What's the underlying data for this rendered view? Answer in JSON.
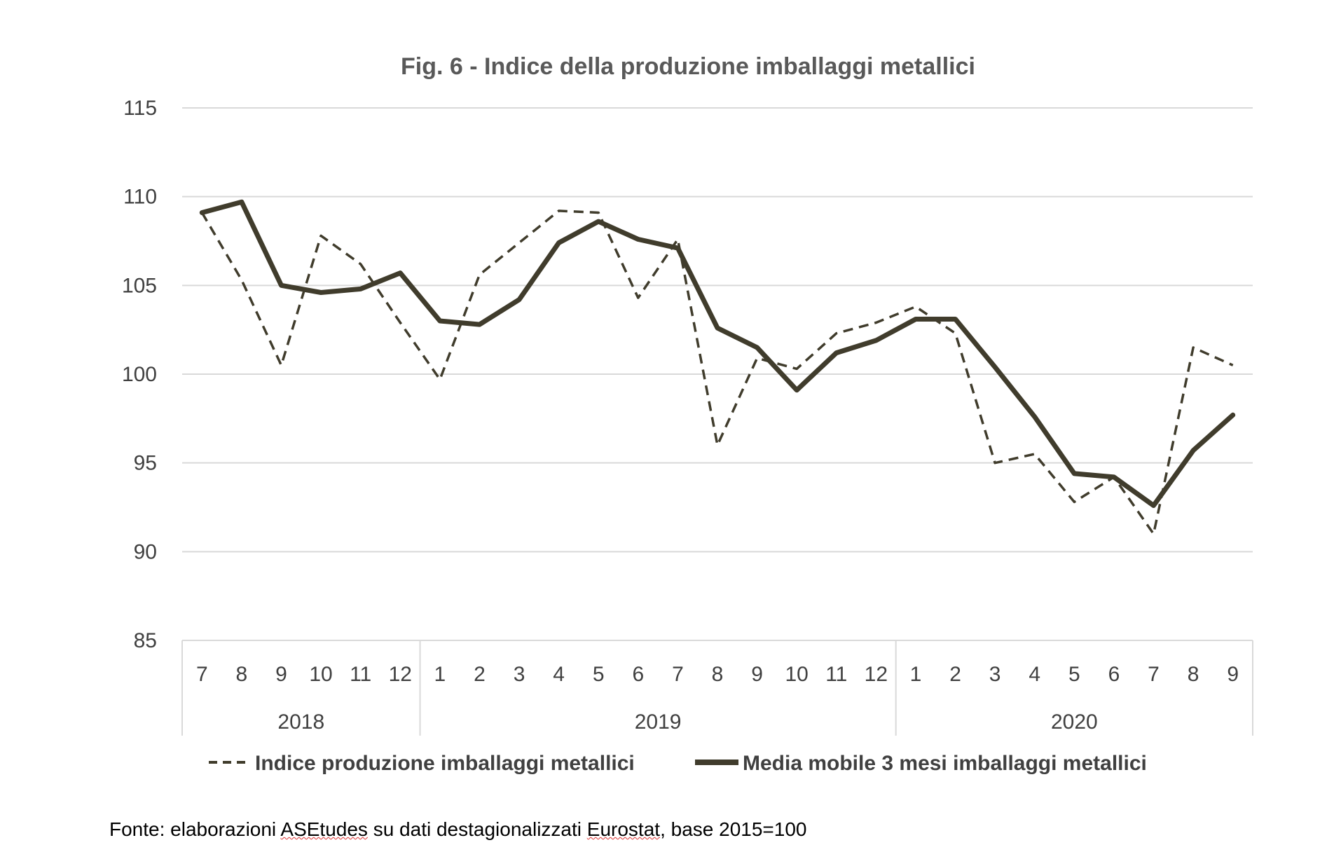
{
  "chart_data": {
    "type": "line",
    "title": "Fig. 6 - Indice della produzione imballaggi metallici",
    "ylim": [
      85,
      115
    ],
    "yticks": [
      85,
      90,
      95,
      100,
      105,
      110,
      115
    ],
    "grid": true,
    "legend_position": "bottom",
    "categories": [
      "7",
      "8",
      "9",
      "10",
      "11",
      "12",
      "1",
      "2",
      "3",
      "4",
      "5",
      "6",
      "7",
      "8",
      "9",
      "10",
      "11",
      "12",
      "1",
      "2",
      "3",
      "4",
      "5",
      "6",
      "7",
      "8",
      "9"
    ],
    "year_groups": [
      {
        "label": "2018",
        "count": 6
      },
      {
        "label": "2019",
        "count": 12
      },
      {
        "label": "2020",
        "count": 9
      }
    ],
    "series": [
      {
        "name": "Indice produzione imballaggi metallici",
        "style": "dashed",
        "color": "#403c2c",
        "values": [
          109.1,
          105.3,
          100.5,
          107.8,
          106.2,
          102.9,
          99.7,
          105.6,
          107.4,
          109.2,
          109.1,
          104.3,
          107.6,
          96.0,
          100.9,
          100.3,
          102.3,
          102.9,
          103.8,
          102.3,
          95.0,
          95.5,
          92.8,
          94.2,
          91.0,
          101.5,
          100.5
        ]
      },
      {
        "name": "Media mobile 3 mesi imballaggi metallici",
        "style": "solid",
        "color": "#403c2c",
        "values": [
          109.1,
          109.7,
          105.0,
          104.6,
          104.8,
          105.7,
          103.0,
          102.8,
          104.2,
          107.4,
          108.6,
          107.6,
          107.1,
          102.6,
          101.5,
          99.1,
          101.2,
          101.9,
          103.1,
          103.1,
          100.4,
          97.6,
          94.4,
          94.2,
          92.6,
          95.7,
          97.7
        ]
      }
    ]
  },
  "source": {
    "text_before": "Fonte: elaborazioni ",
    "word1": "ASEtudes",
    "text_middle": " su dati destagionalizzati ",
    "word2": "Eurostat",
    "text_after": ", base 2015=100"
  }
}
